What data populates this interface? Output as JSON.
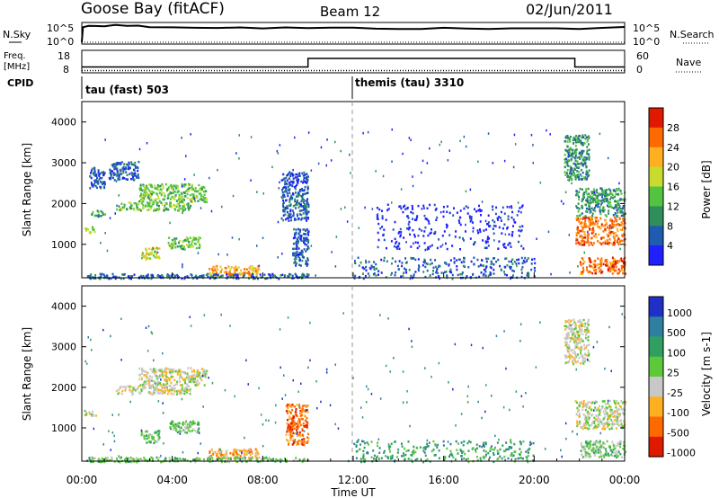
{
  "header": {
    "station": "Goose Bay (fitACF)",
    "beam": "Beam 12",
    "date": "02/Jun/2011"
  },
  "strip_panels": {
    "nsky": {
      "left_label": "N.Sky",
      "left_ticks": [
        "10^5",
        "10^0"
      ],
      "right_ticks": [
        "10^5",
        "10^0"
      ],
      "right_label": "N.Search"
    },
    "freq": {
      "left_label_top": "Freq.",
      "left_label_unit": "[MHz]",
      "left_ticks": [
        "18",
        "8"
      ],
      "right_ticks": [
        "60",
        "0"
      ],
      "right_label": "Nave"
    },
    "cpid": {
      "label": "CPID",
      "programs": [
        {
          "name": "tau (fast) 503",
          "start_hour": 0,
          "end_hour": 12
        },
        {
          "name": "themis (tau) 3310",
          "start_hour": 12,
          "end_hour": 24
        }
      ]
    }
  },
  "time_axis": {
    "label": "Time UT",
    "ticks": [
      "00:00",
      "04:00",
      "08:00",
      "12:00",
      "16:00",
      "20:00",
      "00:00"
    ]
  },
  "chart_data": [
    {
      "type": "line",
      "title": "N.Sky / N.Search",
      "x_unit": "hours UT",
      "x_range": [
        0,
        24
      ],
      "ylabel": "N.Sky",
      "y2label": "N.Search",
      "y_scale": "log",
      "series": [
        {
          "name": "N.Sky",
          "x": [
            0,
            0.05,
            0.3,
            0.6,
            1.0,
            1.5,
            2.0,
            2.5,
            3.0,
            4.0,
            5.0,
            6.0,
            7.0,
            8.0,
            9.0,
            10.0,
            11.0,
            12.0,
            13.0,
            14.0,
            15.0,
            16.0,
            17.0,
            18.0,
            19.0,
            20.0,
            21.0,
            22.0,
            23.0,
            24.0
          ],
          "y": [
            1,
            30000,
            50000,
            70000,
            90000,
            150000,
            80000,
            50000,
            40000,
            30000,
            25000,
            20000,
            18000,
            16000,
            15000,
            15000,
            14000,
            13000,
            13000,
            12000,
            12000,
            11000,
            10000,
            10000,
            10000,
            9000,
            10000,
            12000,
            25000,
            30000
          ]
        }
      ]
    },
    {
      "type": "line",
      "title": "Freq / Nave",
      "x_unit": "hours UT",
      "x_range": [
        0,
        24
      ],
      "ylabel": "Freq. [MHz]",
      "ylim": [
        8,
        18
      ],
      "y2label": "Nave",
      "y2lim": [
        0,
        60
      ],
      "series": [
        {
          "name": "Freq.",
          "x": [
            0,
            10,
            10,
            21.8,
            21.8,
            24
          ],
          "y": [
            10.5,
            10.5,
            14.8,
            14.8,
            10.5,
            10.5
          ]
        },
        {
          "name": "Nave",
          "x": [
            0,
            24
          ],
          "y": [
            4,
            4
          ]
        }
      ]
    },
    {
      "type": "heatmap",
      "title": "Power",
      "x_unit": "hours UT",
      "x_range": [
        0,
        24
      ],
      "ylabel": "Slant Range [km]",
      "ylim": [
        180,
        4500
      ],
      "yticks": [
        1000,
        2000,
        3000,
        4000
      ],
      "colorbar_label": "Power [dB]",
      "colorbar_ticks": [
        "4",
        "8",
        "12",
        "16",
        "20",
        "24",
        "28"
      ],
      "colorscale": [
        "#1f1fff",
        "#1f5bb0",
        "#2f8f5a",
        "#52c43f",
        "#c8dc30",
        "#ffb020",
        "#ff6a00",
        "#e01a00"
      ],
      "scatter_regions": [
        {
          "t": [
            0.1,
            0.6
          ],
          "r": [
            1300,
            1450
          ],
          "level": 4
        },
        {
          "t": [
            0.4,
            1.0
          ],
          "r": [
            1700,
            1850
          ],
          "level": 2
        },
        {
          "t": [
            0.3,
            1.0
          ],
          "r": [
            2400,
            2900
          ],
          "level": 1
        },
        {
          "t": [
            1.5,
            4.8
          ],
          "r": [
            1850,
            2050
          ],
          "level": 3
        },
        {
          "t": [
            2.5,
            5.5
          ],
          "r": [
            2050,
            2500
          ],
          "level": 3
        },
        {
          "t": [
            1.2,
            2.5
          ],
          "r": [
            2600,
            3050
          ],
          "level": 1
        },
        {
          "t": [
            2.6,
            3.4
          ],
          "r": [
            650,
            950
          ],
          "level": 4
        },
        {
          "t": [
            3.8,
            5.2
          ],
          "r": [
            900,
            1200
          ],
          "level": 3
        },
        {
          "t": [
            5.6,
            7.8
          ],
          "r": [
            250,
            500
          ],
          "level": 5
        },
        {
          "t": [
            0.2,
            10.0
          ],
          "r": [
            180,
            300
          ],
          "level": 1
        },
        {
          "t": [
            8.8,
            10.0
          ],
          "r": [
            1600,
            2800
          ],
          "level": 1
        },
        {
          "t": [
            9.3,
            10.0
          ],
          "r": [
            500,
            1400
          ],
          "level": 1
        },
        {
          "t": [
            12.0,
            20.0
          ],
          "r": [
            180,
            700
          ],
          "level": 1
        },
        {
          "t": [
            13.0,
            19.5
          ],
          "r": [
            900,
            2000
          ],
          "level": 0
        },
        {
          "t": [
            21.8,
            24.0
          ],
          "r": [
            1000,
            1700
          ],
          "level": 6
        },
        {
          "t": [
            21.8,
            24.0
          ],
          "r": [
            1700,
            2400
          ],
          "level": 2
        },
        {
          "t": [
            22.0,
            24.0
          ],
          "r": [
            300,
            700
          ],
          "level": 6
        },
        {
          "t": [
            21.3,
            22.4
          ],
          "r": [
            2600,
            3700
          ],
          "level": 2
        }
      ]
    },
    {
      "type": "heatmap",
      "title": "Velocity",
      "x_unit": "hours UT",
      "x_range": [
        0,
        24
      ],
      "ylabel": "Slant Range [km]",
      "ylim": [
        180,
        4500
      ],
      "yticks": [
        1000,
        2000,
        3000,
        4000
      ],
      "colorbar_label": "Velocity [m s-1]",
      "colorbar_ticks": [
        "1000",
        "500",
        "100",
        "25",
        "-25",
        "-100",
        "-500",
        "-1000"
      ],
      "colorscale": [
        "#1f2fc8",
        "#2f80a0",
        "#2fa060",
        "#5cc83a",
        "#c8c8c8",
        "#ffb020",
        "#ff6a00",
        "#e01a00"
      ],
      "scatter_regions": [
        {
          "t": [
            0.1,
            0.6
          ],
          "r": [
            1300,
            1450
          ],
          "level": 4
        },
        {
          "t": [
            1.5,
            4.8
          ],
          "r": [
            1850,
            2050
          ],
          "level": 4
        },
        {
          "t": [
            2.5,
            5.5
          ],
          "r": [
            2050,
            2500
          ],
          "level": 4
        },
        {
          "t": [
            2.6,
            3.4
          ],
          "r": [
            650,
            950
          ],
          "level": 3
        },
        {
          "t": [
            3.8,
            5.2
          ],
          "r": [
            900,
            1200
          ],
          "level": 3
        },
        {
          "t": [
            5.6,
            7.8
          ],
          "r": [
            250,
            500
          ],
          "level": 5
        },
        {
          "t": [
            0.2,
            10.0
          ],
          "r": [
            180,
            300
          ],
          "level": 3
        },
        {
          "t": [
            9.0,
            10.0
          ],
          "r": [
            600,
            1600
          ],
          "level": 6
        },
        {
          "t": [
            12.0,
            20.0
          ],
          "r": [
            180,
            700
          ],
          "level": 2
        },
        {
          "t": [
            21.8,
            24.0
          ],
          "r": [
            1000,
            1700
          ],
          "level": 4
        },
        {
          "t": [
            22.0,
            24.0
          ],
          "r": [
            300,
            700
          ],
          "level": 3
        },
        {
          "t": [
            21.3,
            22.4
          ],
          "r": [
            2600,
            3700
          ],
          "level": 4
        }
      ]
    }
  ]
}
